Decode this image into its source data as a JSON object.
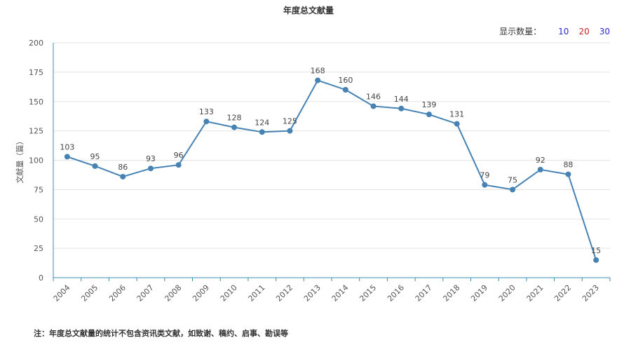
{
  "chart_data": {
    "type": "line",
    "title": "年度总文献量",
    "ylabel": "文献量（篇）",
    "xlabel": "",
    "ylim": [
      0,
      200
    ],
    "yticks": [
      0,
      25,
      50,
      75,
      100,
      125,
      150,
      175,
      200
    ],
    "categories": [
      "2004",
      "2005",
      "2006",
      "2007",
      "2008",
      "2009",
      "2010",
      "2011",
      "2012",
      "2013",
      "2014",
      "2015",
      "2016",
      "2017",
      "2018",
      "2019",
      "2020",
      "2021",
      "2022",
      "2023"
    ],
    "series": [
      {
        "values": [
          103,
          95,
          86,
          93,
          96,
          133,
          128,
          124,
          125,
          168,
          160,
          146,
          144,
          139,
          131,
          79,
          75,
          92,
          88,
          15
        ],
        "color": "#4682b4"
      }
    ],
    "grid": true,
    "legend": "none"
  },
  "display_count": {
    "label": "显示数量：",
    "options": [
      {
        "text": "10",
        "color": "#2a2ad0"
      },
      {
        "text": "20",
        "color": "#d02020"
      },
      {
        "text": "30",
        "color": "#2a2ad0"
      }
    ]
  },
  "footnote": "注：年度总文献量的统计不包含资讯类文献，如致谢、稿约、启事、勘误等"
}
